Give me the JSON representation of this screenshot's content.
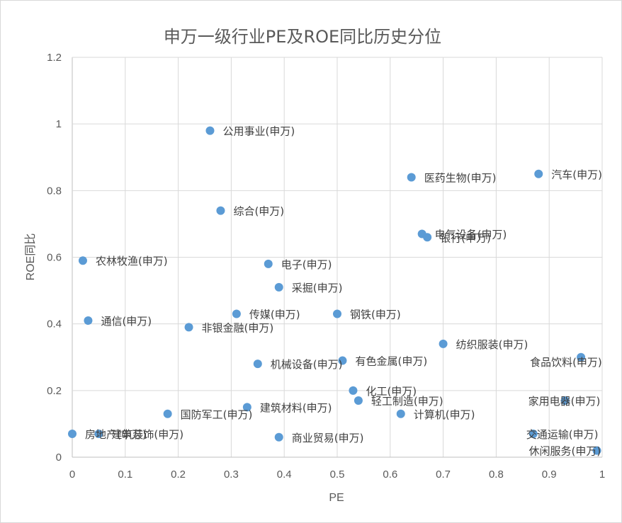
{
  "chart_data": {
    "type": "scatter",
    "title": "申万一级行业PE及ROE同比历史分位",
    "xlabel": "PE",
    "ylabel": "ROE同比",
    "xlim": [
      0,
      1
    ],
    "ylim": [
      0,
      1.2
    ],
    "xticks": [
      "0",
      "0.1",
      "0.2",
      "0.3",
      "0.4",
      "0.5",
      "0.6",
      "0.7",
      "0.8",
      "0.9",
      "1"
    ],
    "yticks": [
      "0",
      "0.2",
      "0.4",
      "0.6",
      "0.8",
      "1",
      "1.2"
    ],
    "grid": true,
    "legend": "none",
    "point_color": "#5b9bd5",
    "points": [
      {
        "label": "公用事业(申万)",
        "x": 0.26,
        "y": 0.98
      },
      {
        "label": "医药生物(申万)",
        "x": 0.64,
        "y": 0.84
      },
      {
        "label": "汽车(申万)",
        "x": 0.88,
        "y": 0.85
      },
      {
        "label": "综合(申万)",
        "x": 0.28,
        "y": 0.74
      },
      {
        "label": "电气设备(申万)",
        "x": 0.66,
        "y": 0.67
      },
      {
        "label": "银行(申万)",
        "x": 0.67,
        "y": 0.66
      },
      {
        "label": "农林牧渔(申万)",
        "x": 0.02,
        "y": 0.59
      },
      {
        "label": "电子(申万)",
        "x": 0.37,
        "y": 0.58
      },
      {
        "label": "采掘(申万)",
        "x": 0.39,
        "y": 0.51
      },
      {
        "label": "传媒(申万)",
        "x": 0.31,
        "y": 0.43
      },
      {
        "label": "钢铁(申万)",
        "x": 0.5,
        "y": 0.43
      },
      {
        "label": "通信(申万)",
        "x": 0.03,
        "y": 0.41
      },
      {
        "label": "非银金融(申万)",
        "x": 0.22,
        "y": 0.39
      },
      {
        "label": "纺织服装(申万)",
        "x": 0.7,
        "y": 0.34
      },
      {
        "label": "食品饮料(申万)",
        "x": 0.96,
        "y": 0.3
      },
      {
        "label": "有色金属(申万)",
        "x": 0.51,
        "y": 0.29
      },
      {
        "label": "机械设备(申万)",
        "x": 0.35,
        "y": 0.28
      },
      {
        "label": "化工(申万)",
        "x": 0.53,
        "y": 0.2
      },
      {
        "label": "轻工制造(申万)",
        "x": 0.54,
        "y": 0.17
      },
      {
        "label": "家用电器(申万)",
        "x": 0.93,
        "y": 0.17
      },
      {
        "label": "建筑材料(申万)",
        "x": 0.33,
        "y": 0.15
      },
      {
        "label": "国防军工(申万)",
        "x": 0.18,
        "y": 0.13
      },
      {
        "label": "计算机(申万)",
        "x": 0.62,
        "y": 0.13
      },
      {
        "label": "房地产(申万)",
        "x": 0.0,
        "y": 0.07
      },
      {
        "label": "建筑装饰(申万)",
        "x": 0.05,
        "y": 0.07
      },
      {
        "label": "交通运输(申万)",
        "x": 0.87,
        "y": 0.07
      },
      {
        "label": "商业贸易(申万)",
        "x": 0.39,
        "y": 0.06
      },
      {
        "label": "休闲服务(申万)",
        "x": 0.99,
        "y": 0.02
      }
    ]
  }
}
